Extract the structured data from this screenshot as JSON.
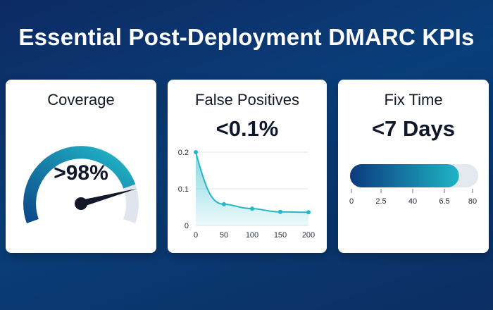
{
  "title": "Essential Post-Deployment DMARC KPIs",
  "colors": {
    "gauge_dark": "#0c4a8a",
    "gauge_light": "#22b8c8",
    "gauge_track": "#e1e6ee",
    "line": "#22b8c8",
    "bar_dark": "#0b3a7e",
    "bar_light": "#1fb4c4",
    "bar_track": "#e4e8ef",
    "needle": "#111827"
  },
  "chart_data": [
    {
      "type": "gauge",
      "title": "Coverage",
      "value_label": ">98%",
      "value": 98
    },
    {
      "type": "line",
      "title": "False Positives",
      "value_label": "<0.1%",
      "x": [
        0,
        50,
        100,
        150,
        200
      ],
      "y": [
        0.2,
        0.058,
        0.046,
        0.037,
        0.036
      ],
      "xticks": [
        "0",
        "50",
        "100",
        "150",
        "200"
      ],
      "yticks": [
        "0",
        "0.1",
        "0.2"
      ],
      "xlim": [
        0,
        200
      ],
      "ylim": [
        0,
        0.2
      ],
      "grid": true
    },
    {
      "type": "bar",
      "title": "Fix Time",
      "value_label": "<7 Days",
      "ticks": [
        "0",
        "2.5",
        "40",
        "6.5",
        "80"
      ],
      "fill_fraction": 0.85
    }
  ]
}
